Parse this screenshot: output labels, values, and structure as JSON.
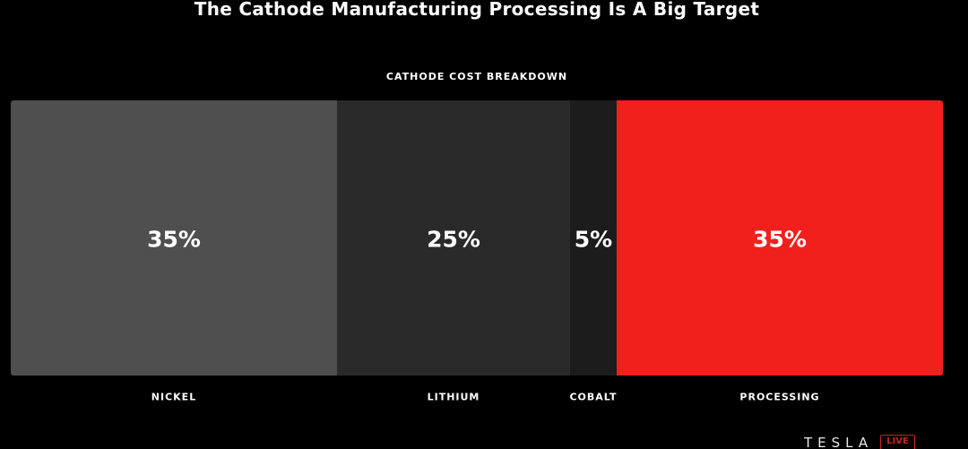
{
  "slide": {
    "title": "The Cathode Manufacturing Processing Is A Big Target"
  },
  "colors": {
    "background": "#000000",
    "nickel": "#4f4f4f",
    "lithium": "#2a2a2a",
    "cobalt": "#1c1c1c",
    "processing": "#f2201d",
    "text": "#ffffff"
  },
  "chart_data": {
    "type": "bar",
    "stacked": true,
    "orientation": "horizontal-100%",
    "title": "CATHODE COST BREAKDOWN",
    "categories": [
      "NICKEL",
      "LITHIUM",
      "COBALT",
      "PROCESSING"
    ],
    "values": [
      35,
      25,
      5,
      35
    ],
    "data_labels": [
      "35%",
      "25%",
      "5%",
      "35%"
    ],
    "unit": "%",
    "total": 100,
    "legend": "none",
    "grid": false
  },
  "branding": {
    "wordmark": "TESLA",
    "badge": "LIVE"
  }
}
